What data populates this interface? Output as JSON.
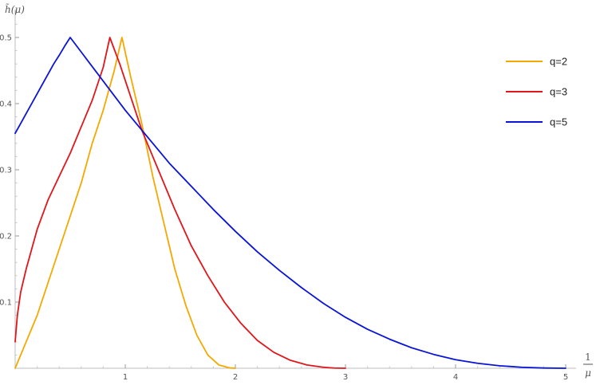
{
  "chart_data": {
    "type": "line",
    "title": "",
    "ylabel": "h̃(μ)",
    "xlabel_numerator": "1",
    "xlabel_denominator": "μ",
    "xlim": [
      0,
      5
    ],
    "ylim": [
      0,
      0.5
    ],
    "x_ticks": [
      1,
      2,
      3,
      4,
      5
    ],
    "x_tick_labels": [
      "1",
      "2",
      "3",
      "4",
      "5"
    ],
    "y_ticks": [
      0.1,
      0.2,
      0.3,
      0.4,
      0.5
    ],
    "y_tick_labels": [
      "0.1",
      "0.2",
      "0.3",
      "0.4",
      "0.5"
    ],
    "grid": false,
    "legend_position": "top-right",
    "series": [
      {
        "name": "q=2",
        "color": "#F5A800",
        "x": [
          0,
          0.1,
          0.2,
          0.3,
          0.4,
          0.5,
          0.6,
          0.7,
          0.8,
          0.9,
          0.97,
          1.05,
          1.15,
          1.25,
          1.35,
          1.45,
          1.55,
          1.65,
          1.75,
          1.85,
          1.95,
          2.0
        ],
        "y": [
          0,
          0.04,
          0.08,
          0.13,
          0.18,
          0.23,
          0.28,
          0.34,
          0.39,
          0.45,
          0.5,
          0.44,
          0.37,
          0.29,
          0.22,
          0.15,
          0.095,
          0.05,
          0.02,
          0.005,
          0.0005,
          0
        ]
      },
      {
        "name": "q=3",
        "color": "#E0161B",
        "x": [
          0,
          0.02,
          0.05,
          0.1,
          0.15,
          0.2,
          0.3,
          0.4,
          0.5,
          0.6,
          0.7,
          0.8,
          0.86,
          0.95,
          1.05,
          1.15,
          1.3,
          1.45,
          1.6,
          1.75,
          1.9,
          2.05,
          2.2,
          2.35,
          2.5,
          2.65,
          2.8,
          2.9,
          3.0
        ],
        "y": [
          0.04,
          0.08,
          0.115,
          0.15,
          0.18,
          0.21,
          0.255,
          0.29,
          0.325,
          0.365,
          0.405,
          0.455,
          0.5,
          0.46,
          0.41,
          0.36,
          0.3,
          0.24,
          0.185,
          0.14,
          0.1,
          0.068,
          0.042,
          0.024,
          0.012,
          0.005,
          0.0015,
          0.0003,
          0
        ]
      },
      {
        "name": "q=5",
        "color": "#0A14D8",
        "x": [
          0,
          0.05,
          0.1,
          0.15,
          0.2,
          0.25,
          0.3,
          0.35,
          0.4,
          0.45,
          0.5,
          0.6,
          0.7,
          0.8,
          0.9,
          1.0,
          1.1,
          1.25,
          1.4,
          1.6,
          1.8,
          2.0,
          2.2,
          2.4,
          2.6,
          2.8,
          3.0,
          3.2,
          3.4,
          3.6,
          3.8,
          4.0,
          4.2,
          4.4,
          4.6,
          4.8,
          5.0
        ],
        "y": [
          0.355,
          0.37,
          0.385,
          0.4,
          0.415,
          0.43,
          0.445,
          0.46,
          0.473,
          0.487,
          0.5,
          0.478,
          0.456,
          0.434,
          0.412,
          0.39,
          0.37,
          0.34,
          0.31,
          0.275,
          0.24,
          0.207,
          0.176,
          0.148,
          0.122,
          0.098,
          0.077,
          0.059,
          0.044,
          0.031,
          0.021,
          0.013,
          0.0075,
          0.0038,
          0.0015,
          0.0004,
          0
        ]
      }
    ]
  }
}
